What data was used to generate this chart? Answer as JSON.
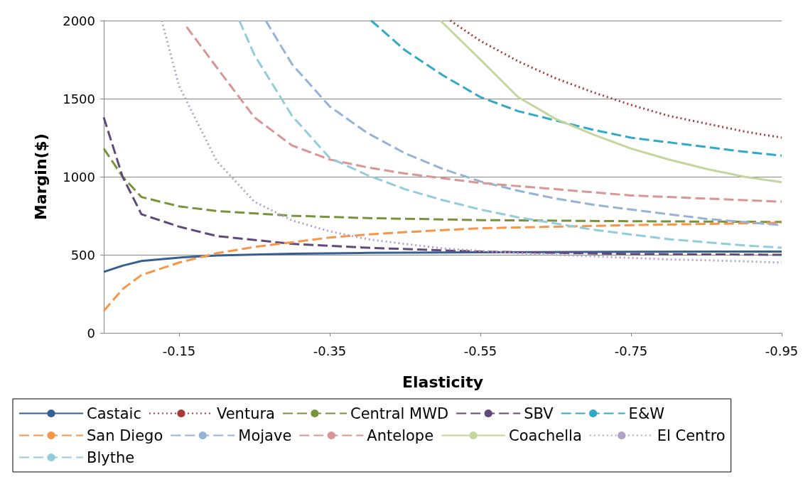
{
  "chart_data": {
    "type": "line",
    "xlabel": "Elasticity",
    "ylabel": "Margin($)",
    "xlim": [
      -0.05,
      -0.95
    ],
    "xticks": [
      -0.15,
      -0.35,
      -0.55,
      -0.75,
      -0.95
    ],
    "ylim": [
      0,
      2000
    ],
    "yticks": [
      0,
      500,
      1000,
      1500,
      2000
    ],
    "grid": "y",
    "legend": "bottom",
    "marker": "none",
    "series": [
      {
        "name": "Castaic",
        "color": "#376092",
        "line_style": "solid",
        "x": [
          -0.05,
          -0.075,
          -0.1,
          -0.15,
          -0.2,
          -0.3,
          -0.4,
          -0.55,
          -0.75,
          -0.95
        ],
        "values": [
          390,
          430,
          460,
          482,
          495,
          507,
          512,
          516,
          519,
          521
        ]
      },
      {
        "name": "Ventura",
        "color": "#a83a36",
        "line_style": "dotted",
        "x": [
          -0.51,
          -0.55,
          -0.6,
          -0.65,
          -0.7,
          -0.75,
          -0.8,
          -0.85,
          -0.9,
          -0.95
        ],
        "values": [
          2000,
          1870,
          1740,
          1630,
          1540,
          1460,
          1390,
          1340,
          1290,
          1250
        ]
      },
      {
        "name": "Central MWD",
        "color": "#77933c",
        "line_style": "dashed",
        "x": [
          -0.05,
          -0.075,
          -0.1,
          -0.15,
          -0.2,
          -0.3,
          -0.4,
          -0.55,
          -0.75,
          -0.95
        ],
        "values": [
          1180,
          1000,
          870,
          810,
          780,
          750,
          735,
          722,
          715,
          710
        ]
      },
      {
        "name": "SBV",
        "color": "#604a7b",
        "line_style": "dashed",
        "x": [
          -0.05,
          -0.075,
          -0.1,
          -0.15,
          -0.2,
          -0.3,
          -0.4,
          -0.55,
          -0.75,
          -0.95
        ],
        "values": [
          1380,
          1000,
          760,
          680,
          620,
          570,
          545,
          520,
          505,
          500
        ]
      },
      {
        "name": "E&W",
        "color": "#31a9c7",
        "line_style": "dashed",
        "x": [
          -0.405,
          -0.45,
          -0.5,
          -0.55,
          -0.6,
          -0.65,
          -0.7,
          -0.75,
          -0.8,
          -0.85,
          -0.9,
          -0.95
        ],
        "values": [
          2000,
          1810,
          1650,
          1510,
          1420,
          1360,
          1300,
          1250,
          1220,
          1190,
          1160,
          1135
        ]
      },
      {
        "name": "San Diego",
        "color": "#f79646",
        "line_style": "dashed",
        "x": [
          -0.05,
          -0.075,
          -0.1,
          -0.15,
          -0.2,
          -0.25,
          -0.3,
          -0.35,
          -0.4,
          -0.45,
          -0.55,
          -0.75,
          -0.95
        ],
        "values": [
          140,
          280,
          370,
          450,
          510,
          550,
          580,
          610,
          630,
          645,
          670,
          690,
          705
        ]
      },
      {
        "name": "Mojave",
        "color": "#95b3d7",
        "line_style": "dashed",
        "x": [
          -0.265,
          -0.3,
          -0.35,
          -0.4,
          -0.45,
          -0.5,
          -0.55,
          -0.6,
          -0.65,
          -0.7,
          -0.75,
          -0.8,
          -0.85,
          -0.9,
          -0.95
        ],
        "values": [
          2000,
          1720,
          1450,
          1280,
          1150,
          1050,
          970,
          910,
          860,
          820,
          790,
          760,
          730,
          710,
          690
        ]
      },
      {
        "name": "Antelope",
        "color": "#d99694",
        "line_style": "dashed",
        "x": [
          -0.16,
          -0.2,
          -0.25,
          -0.3,
          -0.35,
          -0.4,
          -0.45,
          -0.5,
          -0.55,
          -0.6,
          -0.65,
          -0.7,
          -0.75,
          -0.8,
          -0.85,
          -0.9,
          -0.95
        ],
        "values": [
          1960,
          1700,
          1380,
          1200,
          1110,
          1060,
          1020,
          990,
          960,
          940,
          920,
          900,
          880,
          870,
          860,
          850,
          840
        ]
      },
      {
        "name": "Coachella",
        "color": "#c3d69b",
        "line_style": "solid",
        "x": [
          -0.497,
          -0.55,
          -0.6,
          -0.65,
          -0.7,
          -0.75,
          -0.8,
          -0.85,
          -0.9,
          -0.95
        ],
        "values": [
          2000,
          1750,
          1510,
          1370,
          1270,
          1180,
          1110,
          1050,
          1000,
          965
        ]
      },
      {
        "name": "El Centro",
        "color": "#b3a2c7",
        "line_style": "dotted",
        "x": [
          -0.127,
          -0.15,
          -0.2,
          -0.25,
          -0.3,
          -0.35,
          -0.4,
          -0.45,
          -0.5,
          -0.55,
          -0.6,
          -0.65,
          -0.7,
          -0.75,
          -0.8,
          -0.85,
          -0.9,
          -0.95
        ],
        "values": [
          2000,
          1580,
          1100,
          840,
          720,
          650,
          600,
          570,
          540,
          525,
          510,
          500,
          490,
          480,
          470,
          465,
          458,
          450
        ]
      },
      {
        "name": "Blythe",
        "color": "#93cddd",
        "line_style": "dashed",
        "x": [
          -0.23,
          -0.25,
          -0.3,
          -0.35,
          -0.4,
          -0.45,
          -0.5,
          -0.55,
          -0.6,
          -0.65,
          -0.7,
          -0.75,
          -0.8,
          -0.85,
          -0.9,
          -0.95
        ],
        "values": [
          2000,
          1780,
          1390,
          1120,
          1010,
          920,
          850,
          790,
          740,
          700,
          660,
          630,
          600,
          580,
          560,
          545
        ]
      }
    ]
  }
}
